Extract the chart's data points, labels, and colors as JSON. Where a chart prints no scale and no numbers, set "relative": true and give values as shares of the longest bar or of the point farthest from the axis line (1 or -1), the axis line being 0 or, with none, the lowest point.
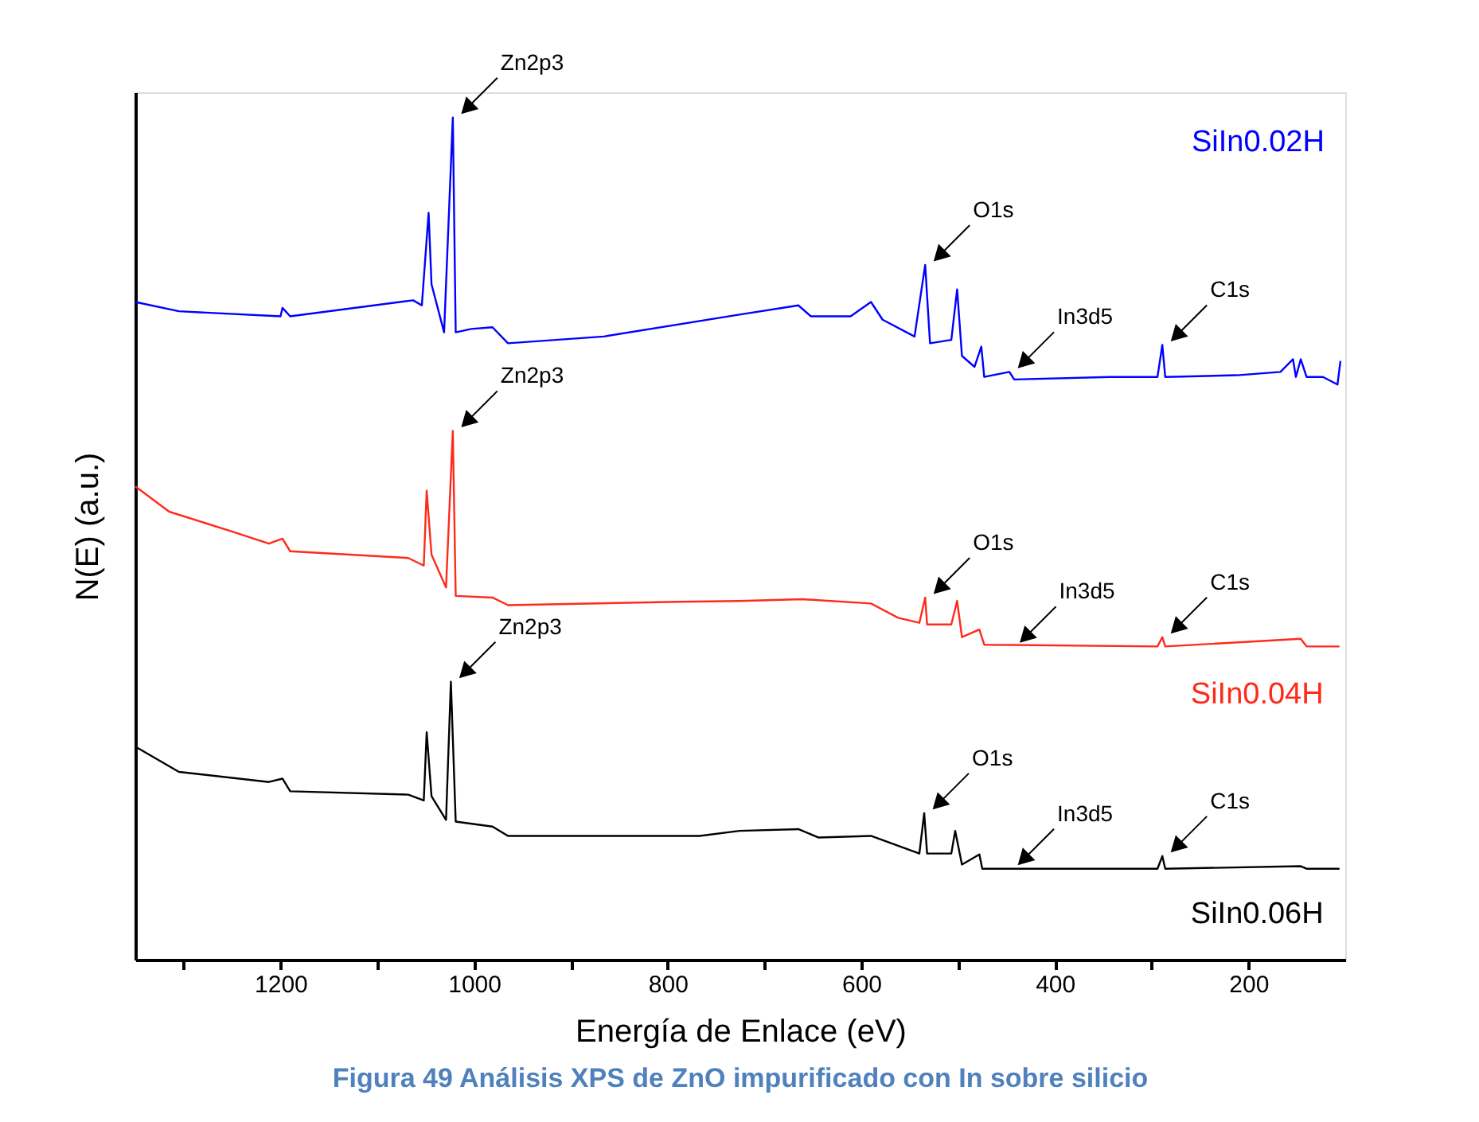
{
  "chart_data": {
    "type": "line",
    "relative": true,
    "title": "Figura 49 Análisis XPS de ZnO impurificado con In sobre silicio",
    "xlabel": "Energía de Enlace (eV)",
    "ylabel": "N(E) (a.u.)",
    "xlim": [
      1350,
      100
    ],
    "xticks": [
      {
        "value": 1300,
        "label": null
      },
      1200,
      {
        "value": 1100,
        "label": null
      },
      1000,
      {
        "value": 900,
        "label": null
      },
      800,
      {
        "value": 700,
        "label": null
      },
      600,
      {
        "value": 500,
        "label": null
      },
      400,
      {
        "value": 300,
        "label": null
      },
      200
    ],
    "tick_labels": "x",
    "grid": false,
    "legend": "right",
    "series": [
      {
        "name": "SiIn0.02H",
        "color": "#0000ff",
        "x": [
          1350,
          1305,
          1200,
          1198,
          1190,
          1063,
          1054,
          1047,
          1044,
          1031,
          1022,
          1019,
          1003,
          981,
          965,
          866,
          726,
          665,
          652,
          611,
          590,
          578,
          545,
          534,
          529,
          507,
          501,
          496,
          483,
          476,
          473,
          447,
          442,
          343,
          294,
          289,
          286,
          212,
          167,
          154,
          151,
          146,
          140,
          123,
          108,
          105
        ],
        "values": [
          0.781,
          0.77,
          0.764,
          0.774,
          0.764,
          0.783,
          0.777,
          0.887,
          0.802,
          0.745,
          1.0,
          0.745,
          0.749,
          0.751,
          0.732,
          0.74,
          0.766,
          0.777,
          0.764,
          0.764,
          0.781,
          0.76,
          0.74,
          0.825,
          0.732,
          0.736,
          0.796,
          0.717,
          0.704,
          0.728,
          0.692,
          0.698,
          0.689,
          0.692,
          0.692,
          0.73,
          0.692,
          0.694,
          0.698,
          0.713,
          0.692,
          0.713,
          0.692,
          0.692,
          0.683,
          0.711
        ]
      },
      {
        "name": "SiIn0.04H",
        "color": "#ff2a1a",
        "x": [
          1350,
          1315,
          1249,
          1212,
          1198,
          1190,
          1068,
          1052,
          1049,
          1044,
          1029,
          1022,
          1019,
          981,
          965,
          789,
          726,
          661,
          590,
          562,
          540,
          534,
          532,
          507,
          501,
          496,
          478,
          473,
          294,
          289,
          286,
          146,
          140,
          106
        ],
        "values": [
          0.562,
          0.532,
          0.508,
          0.494,
          0.5,
          0.485,
          0.477,
          0.468,
          0.557,
          0.481,
          0.442,
          0.628,
          0.432,
          0.43,
          0.421,
          0.425,
          0.426,
          0.428,
          0.423,
          0.406,
          0.4,
          0.43,
          0.398,
          0.398,
          0.426,
          0.383,
          0.392,
          0.374,
          0.372,
          0.383,
          0.372,
          0.381,
          0.372,
          0.372
        ]
      },
      {
        "name": "SiIn0.06H",
        "color": "#000000",
        "x": [
          1350,
          1305,
          1212,
          1198,
          1190,
          1068,
          1052,
          1049,
          1044,
          1029,
          1024,
          1019,
          981,
          965,
          767,
          726,
          665,
          644,
          590,
          540,
          535,
          532,
          507,
          503,
          496,
          478,
          475,
          294,
          289,
          286,
          146,
          140,
          106
        ],
        "values": [
          0.253,
          0.223,
          0.211,
          0.215,
          0.2,
          0.196,
          0.189,
          0.27,
          0.194,
          0.166,
          0.33,
          0.164,
          0.158,
          0.147,
          0.147,
          0.153,
          0.155,
          0.145,
          0.147,
          0.126,
          0.174,
          0.126,
          0.126,
          0.153,
          0.113,
          0.125,
          0.108,
          0.108,
          0.123,
          0.108,
          0.111,
          0.108,
          0.108
        ]
      }
    ],
    "annotations": [
      {
        "text": "Zn2p3",
        "x": 1022,
        "y": 1.0
      },
      {
        "text": "O1s",
        "x": 534,
        "y": 0.825
      },
      {
        "text": "In3d5",
        "x": 447,
        "y": 0.698
      },
      {
        "text": "C1s",
        "x": 289,
        "y": 0.73
      },
      {
        "text": "Zn2p3",
        "x": 1022,
        "y": 0.628
      },
      {
        "text": "O1s",
        "x": 534,
        "y": 0.43
      },
      {
        "text": "In3d5",
        "x": 445,
        "y": 0.372
      },
      {
        "text": "C1s",
        "x": 289,
        "y": 0.383
      },
      {
        "text": "Zn2p3",
        "x": 1024,
        "y": 0.33
      },
      {
        "text": "O1s",
        "x": 535,
        "y": 0.174
      },
      {
        "text": "In3d5",
        "x": 447,
        "y": 0.108
      },
      {
        "text": "C1s",
        "x": 289,
        "y": 0.123
      }
    ]
  }
}
